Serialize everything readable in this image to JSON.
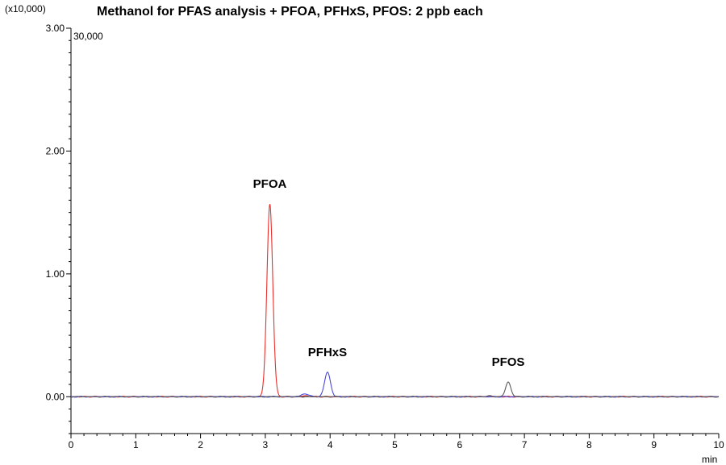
{
  "chart_data": {
    "type": "line",
    "title": "Methanol for PFAS analysis + PFOA, PFHxS, PFOS: 2 ppb each",
    "y_multiplier_label": "(x10,000)",
    "y_max_label": "30,000",
    "xlabel": "min",
    "ylabel": "",
    "xlim": [
      0,
      10
    ],
    "ylim": [
      -0.3,
      3.0
    ],
    "x_ticks": [
      "0",
      "1",
      "2",
      "3",
      "4",
      "5",
      "6",
      "7",
      "8",
      "9",
      "10"
    ],
    "y_ticks": [
      "0.00",
      "1.00",
      "2.00",
      "3.00"
    ],
    "series": [
      {
        "color": "#e8302c",
        "peaks": [
          {
            "label": "PFOA",
            "rt": 3.07,
            "height": 1.57,
            "width": 0.045
          }
        ],
        "minor_peaks": [
          {
            "rt": 3.62,
            "height": 0.008,
            "width": 0.05
          }
        ]
      },
      {
        "color": "#4a4ad8",
        "peaks": [
          {
            "label": "PFHxS",
            "rt": 3.96,
            "height": 0.2,
            "width": 0.045
          }
        ],
        "minor_peaks": [
          {
            "rt": 3.62,
            "height": 0.025,
            "width": 0.05
          }
        ]
      },
      {
        "color": "#5a5a5a",
        "peaks": [
          {
            "label": "PFOS",
            "rt": 6.75,
            "height": 0.12,
            "width": 0.04
          }
        ],
        "minor_peaks": [
          {
            "rt": 6.45,
            "height": 0.006,
            "width": 0.05
          }
        ]
      }
    ]
  }
}
